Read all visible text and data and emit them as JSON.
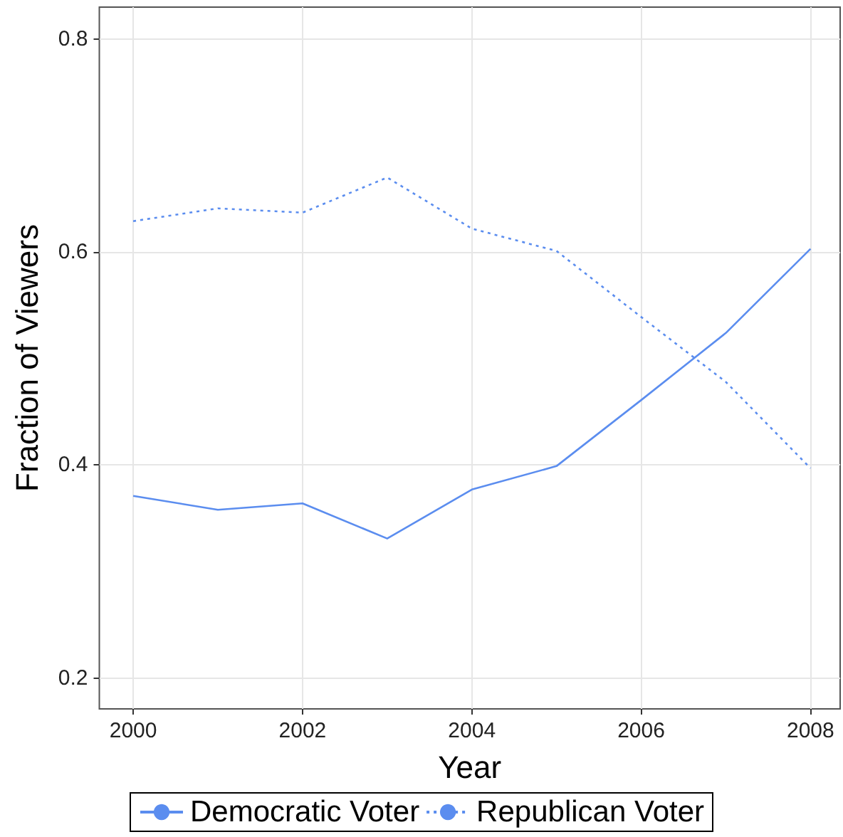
{
  "chart_data": {
    "type": "line",
    "xlabel": "Year",
    "ylabel": "Fraction of Viewers",
    "x": [
      2000,
      2001,
      2002,
      2003,
      2004,
      2005,
      2006,
      2007,
      2008
    ],
    "series": [
      {
        "name": "Democratic Voter",
        "color": "#5b8def",
        "line_style": "solid",
        "values": [
          0.371,
          0.358,
          0.364,
          0.331,
          0.377,
          0.399,
          0.461,
          0.524,
          0.603
        ]
      },
      {
        "name": "Republican Voter",
        "color": "#5b8def",
        "line_style": "dotted",
        "values": [
          0.629,
          0.641,
          0.637,
          0.67,
          0.622,
          0.601,
          0.539,
          0.478,
          0.397
        ]
      }
    ],
    "xlim": [
      1999.6,
      2008.35
    ],
    "xticks": [
      2000,
      2002,
      2004,
      2006,
      2008
    ],
    "ylim": [
      0.171,
      0.83
    ],
    "yticks": [
      0.2,
      0.4,
      0.6,
      0.8
    ],
    "grid": true,
    "legend": "bottom",
    "marker": "none"
  }
}
